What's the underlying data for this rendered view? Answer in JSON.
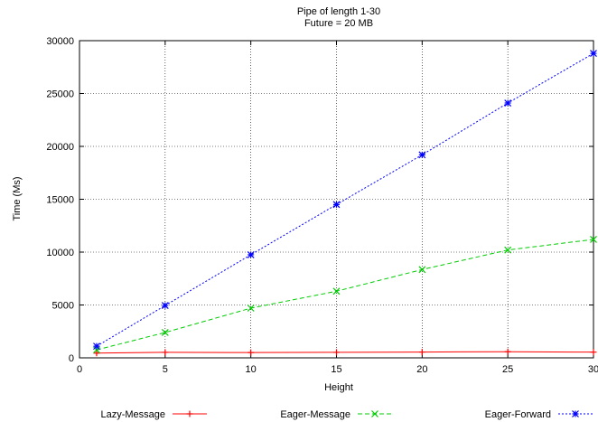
{
  "chart_data": {
    "type": "line",
    "title": "Pipe of length 1-30",
    "subtitle": "Future = 20 MB",
    "xlabel": "Height",
    "ylabel": "Time (Ms)",
    "xlim": [
      0,
      30
    ],
    "ylim": [
      0,
      30000
    ],
    "xticks": [
      0,
      5,
      10,
      15,
      20,
      25,
      30
    ],
    "yticks": [
      0,
      5000,
      10000,
      15000,
      20000,
      25000,
      30000
    ],
    "grid": true,
    "legend_position": "bottom",
    "x": [
      1,
      5,
      10,
      15,
      20,
      25,
      30
    ],
    "series": [
      {
        "name": "Lazy-Message",
        "values": [
          450,
          520,
          500,
          520,
          550,
          580,
          540
        ],
        "color": "#ff0000",
        "marker": "plus",
        "dash": "solid"
      },
      {
        "name": "Eager-Message",
        "values": [
          750,
          2400,
          4700,
          6300,
          8350,
          10200,
          11200
        ],
        "color": "#00cc00",
        "marker": "x",
        "dash": "dashed"
      },
      {
        "name": "Eager-Forward",
        "values": [
          1100,
          4950,
          9750,
          14500,
          19200,
          24100,
          28800
        ],
        "color": "#0000ff",
        "marker": "star",
        "dash": "dotted"
      }
    ]
  }
}
